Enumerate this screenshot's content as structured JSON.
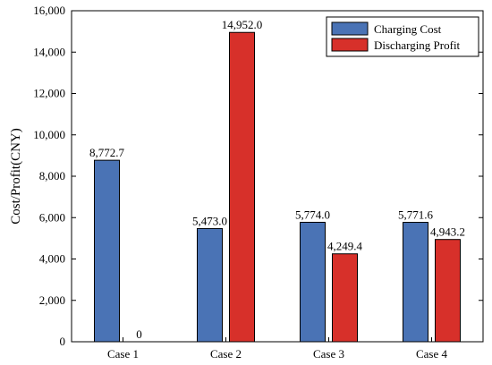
{
  "chart_data": {
    "type": "bar",
    "categories": [
      "Case 1",
      "Case 2",
      "Case 3",
      "Case 4"
    ],
    "series": [
      {
        "name": "Charging Cost",
        "color": "#4a73b5",
        "values": [
          8772.7,
          5473.0,
          5774.0,
          5771.6
        ],
        "labels": [
          "8,772.7",
          "5,473.0",
          "5,774.0",
          "5,771.6"
        ]
      },
      {
        "name": "Discharging Profit",
        "color": "#d7302a",
        "values": [
          0,
          14952.0,
          4249.4,
          4943.2
        ],
        "labels": [
          "0",
          "14,952.0",
          "4,249.4",
          "4,943.2"
        ]
      }
    ],
    "title": "",
    "xlabel": "",
    "ylabel": "Cost/Profit(CNY)",
    "ylim": [
      0,
      16000
    ],
    "yticks": [
      0,
      2000,
      4000,
      6000,
      8000,
      10000,
      12000,
      14000,
      16000
    ],
    "ytick_labels": [
      "0",
      "2,000",
      "4,000",
      "6,000",
      "8,000",
      "10,000",
      "12,000",
      "14,000",
      "16,000"
    ],
    "grid": false,
    "legend_position": "top-right"
  }
}
